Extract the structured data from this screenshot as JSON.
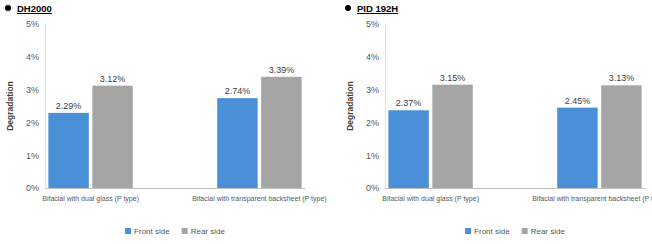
{
  "chart_data": [
    {
      "type": "bar",
      "title": "DH2000",
      "y_label": "Degradation",
      "categories": [
        "Bifacial with dual glass (P type)",
        "Bifacial with transparent backsheet (P type)"
      ],
      "series": [
        {
          "name": "Front side",
          "color": "#4a90d9",
          "values": [
            2.29,
            2.74
          ],
          "value_labels": [
            "2.29%",
            "2.74%"
          ]
        },
        {
          "name": "Rear side",
          "color": "#a5a5a5",
          "values": [
            3.12,
            3.39
          ],
          "value_labels": [
            "3.12%",
            "3.39%"
          ]
        }
      ],
      "ylim": [
        0,
        5
      ],
      "yticks": [
        {
          "value": 0,
          "label": "0%"
        },
        {
          "value": 1,
          "label": "1%"
        },
        {
          "value": 2,
          "label": "2%"
        },
        {
          "value": 3,
          "label": "3%"
        },
        {
          "value": 4,
          "label": "4%"
        },
        {
          "value": 5,
          "label": "5%"
        }
      ],
      "data_labels": true,
      "legend": "bottom",
      "grid": false
    },
    {
      "type": "bar",
      "title": "PID 192H",
      "y_label": "Degradation",
      "categories": [
        "Bifacial with dual glass (P type)",
        "Bifacial with transparent backsheet (P type)"
      ],
      "series": [
        {
          "name": "Front side",
          "color": "#4a90d9",
          "values": [
            2.37,
            2.45
          ],
          "value_labels": [
            "2.37%",
            "2.45%"
          ]
        },
        {
          "name": "Rear side",
          "color": "#a5a5a5",
          "values": [
            3.15,
            3.13
          ],
          "value_labels": [
            "3.15%",
            "3.13%"
          ]
        }
      ],
      "ylim": [
        0,
        5
      ],
      "yticks": [
        {
          "value": 0,
          "label": "0%"
        },
        {
          "value": 1,
          "label": "1%"
        },
        {
          "value": 2,
          "label": "2%"
        },
        {
          "value": 3,
          "label": "3%"
        },
        {
          "value": 4,
          "label": "4%"
        },
        {
          "value": 5,
          "label": "5%"
        }
      ],
      "data_labels": true,
      "legend": "bottom",
      "grid": false
    }
  ]
}
